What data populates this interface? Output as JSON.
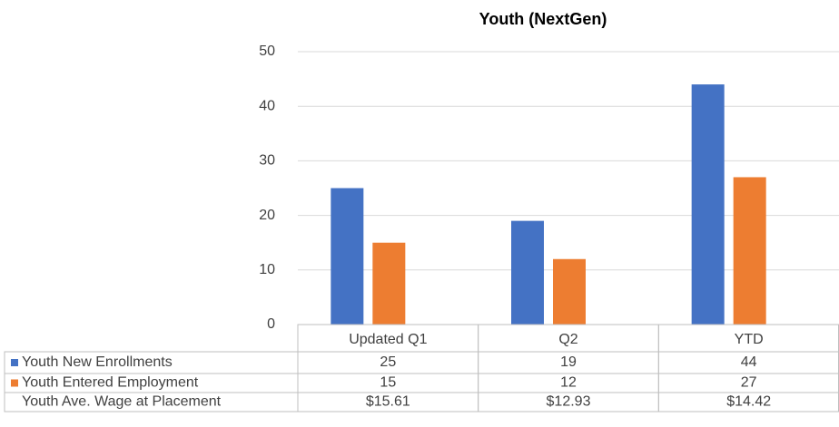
{
  "chart_data": {
    "type": "bar",
    "title": "Youth (NextGen)",
    "categories": [
      "Updated Q1",
      "Q2",
      "YTD"
    ],
    "series": [
      {
        "name": "Youth New Enrollments",
        "color": "#4472c4",
        "values": [
          25,
          19,
          44
        ]
      },
      {
        "name": "Youth Entered Employment",
        "color": "#ed7d31",
        "values": [
          15,
          12,
          27
        ]
      },
      {
        "name": "Youth Ave. Wage at Placement",
        "values": [
          15.61,
          12.93,
          14.42
        ],
        "value_labels": [
          "$15.61",
          "$12.93",
          "$14.42"
        ]
      }
    ],
    "ylim": [
      0,
      50
    ],
    "yticks": [
      0,
      10,
      20,
      30,
      40,
      50
    ],
    "grid": true
  }
}
